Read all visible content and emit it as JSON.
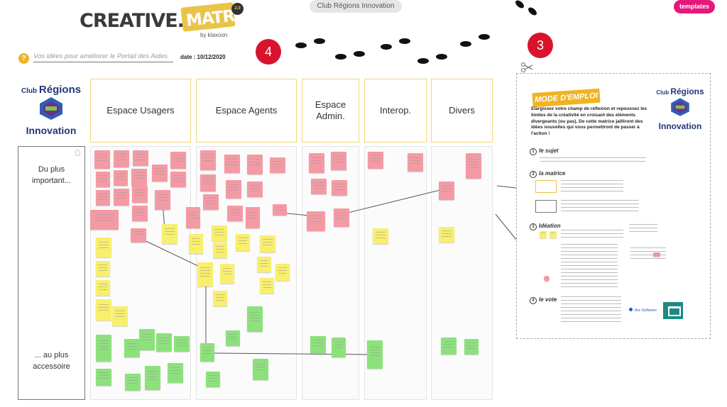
{
  "header": {
    "board_title": "Club Régions Innovation",
    "templates_label": "templates",
    "logo": {
      "creative": "CREATIVE.",
      "matrix": "MATRIX",
      "by": "by klaxoon"
    },
    "subject_placeholder": "Vos idées pour améliorer le Portail des Aides",
    "date_label": "date : 10/12/2020"
  },
  "badges": {
    "step4": "4",
    "step3": "3"
  },
  "club_logo": {
    "line1_prefix": "Club",
    "line1_main": "Régions",
    "line3": "Innovation"
  },
  "columns": [
    {
      "label": "Espace Usagers"
    },
    {
      "label": "Espace Agents"
    },
    {
      "label": "Espace Admin."
    },
    {
      "label": "Interop."
    },
    {
      "label": "Divers"
    }
  ],
  "rows": {
    "top_label": "Du plus important...",
    "bottom_label": "... au plus accessoire"
  },
  "instructions": {
    "banner": "MODE D'EMPLOI",
    "intro": "Elargissez votre champ de réflexion et repoussez les limites de la créativité en croisant des éléments divergeants (ou pas). De cette matrice jailliront des idées nouvelles qui vous permettront de passer à l'action !",
    "sections": [
      {
        "num": "1",
        "title": "le sujet"
      },
      {
        "num": "2",
        "title": "la matrice"
      },
      {
        "num": "3",
        "title": "Idéation"
      },
      {
        "num": "4",
        "title": "le vote"
      }
    ],
    "vote_button": "Jira Software"
  },
  "colors": {
    "accent_pink": "#e5177b",
    "badge_red": "#d8132e",
    "header_border": "#f2d57a",
    "sticky_pink": "#f49aa4",
    "sticky_yellow": "#f8ef6d",
    "sticky_green": "#8de17c",
    "brand_navy": "#21367a"
  },
  "icons": [
    "question-icon",
    "footprints-icon",
    "scissors-icon",
    "bulb-icon",
    "club-regions-logo-icon",
    "teal-board-icon"
  ]
}
